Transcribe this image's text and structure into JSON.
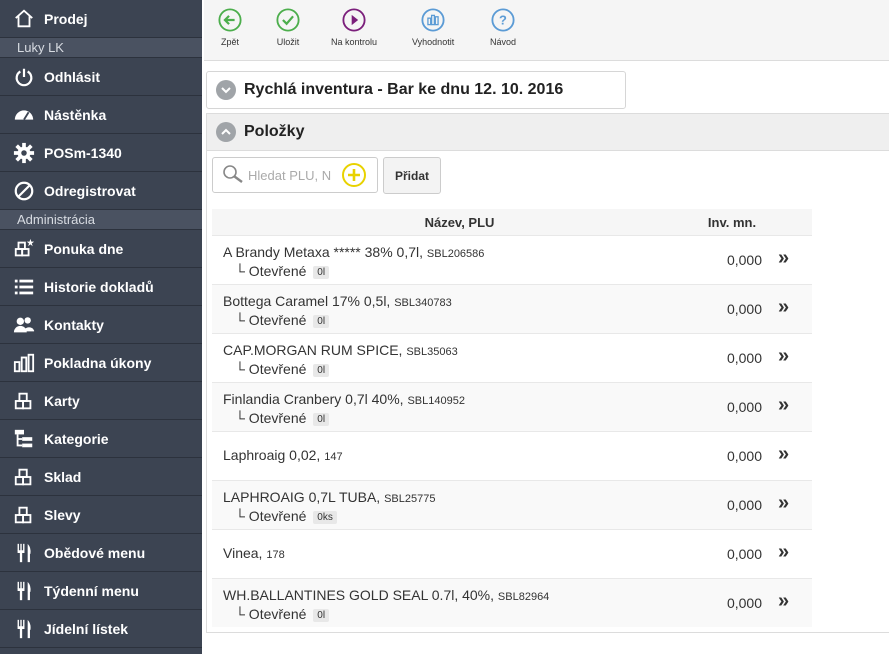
{
  "sidebar": {
    "top_item": {
      "label": "Prodej",
      "icon": "home-icon"
    },
    "user_section": "Luky LK",
    "user_items": [
      {
        "label": "Odhlásit",
        "icon": "power-icon"
      },
      {
        "label": "Nástěnka",
        "icon": "dashboard-icon"
      },
      {
        "label": "POSm-1340",
        "icon": "gear-icon"
      },
      {
        "label": "Odregistrovat",
        "icon": "ban-icon"
      }
    ],
    "admin_section": "Administrácia",
    "admin_items": [
      {
        "label": "Ponuka dne",
        "icon": "boxes-star-icon"
      },
      {
        "label": "Historie dokladů",
        "icon": "list-icon"
      },
      {
        "label": "Kontakty",
        "icon": "users-icon"
      },
      {
        "label": "Pokladna úkony",
        "icon": "bar-chart-icon"
      },
      {
        "label": "Karty",
        "icon": "boxes-icon"
      },
      {
        "label": "Kategorie",
        "icon": "tree-icon"
      },
      {
        "label": "Sklad",
        "icon": "boxes-icon"
      },
      {
        "label": "Slevy",
        "icon": "boxes-icon"
      },
      {
        "label": "Obědové menu",
        "icon": "cutlery-icon"
      },
      {
        "label": "Týdenní menu",
        "icon": "cutlery-icon"
      },
      {
        "label": "Jídelní lístek",
        "icon": "cutlery-icon"
      }
    ]
  },
  "toolbar": {
    "back_label": "Zpět",
    "save_label": "Uložit",
    "check_label": "Na kontrolu",
    "evaluate_label": "Vyhodnotit",
    "help_label": "Návod"
  },
  "colors": {
    "sidebar_bg": "#3c4452",
    "back": "#4cae4c",
    "save": "#4cae4c",
    "check": "#7b1f7b",
    "evaluate": "#5b9bd5",
    "help": "#5b9bd5",
    "add_accent": "#e8d200"
  },
  "title": "Rychlá inventura - Bar ke dnu 12. 10. 2016",
  "items_header": "Položky",
  "search": {
    "placeholder": "Hledat PLU, N"
  },
  "add_button": "Přidat",
  "table": {
    "col_name": "Název, PLU",
    "col_inv": "Inv. mn.",
    "rows": [
      {
        "name": "A Brandy Metaxa ***** 38% 0,7l,",
        "plu": "SBL206586",
        "sub": "└ Otevřené",
        "badge": "0l",
        "value": "0,000"
      },
      {
        "name": "Bottega Caramel 17% 0,5l,",
        "plu": "SBL340783",
        "sub": "└ Otevřené",
        "badge": "0l",
        "value": "0,000"
      },
      {
        "name": "CAP.MORGAN RUM SPICE,",
        "plu": "SBL35063",
        "sub": "└ Otevřené",
        "badge": "0l",
        "value": "0,000"
      },
      {
        "name": "Finlandia Cranbery 0,7l 40%,",
        "plu": "SBL140952",
        "sub": "└ Otevřené",
        "badge": "0l",
        "value": "0,000"
      },
      {
        "name": "Laphroaig 0,02,",
        "plu": "147",
        "sub": "",
        "badge": "",
        "value": "0,000"
      },
      {
        "name": "LAPHROAIG 0,7L TUBA,",
        "plu": "SBL25775",
        "sub": "└ Otevřené",
        "badge": "0ks",
        "value": "0,000"
      },
      {
        "name": "Vinea,",
        "plu": "178",
        "sub": "",
        "badge": "",
        "value": "0,000"
      },
      {
        "name": "WH.BALLANTINES GOLD SEAL 0.7l, 40%,",
        "plu": "SBL82964",
        "sub": "└ Otevřené",
        "badge": "0l",
        "value": "0,000"
      }
    ]
  }
}
